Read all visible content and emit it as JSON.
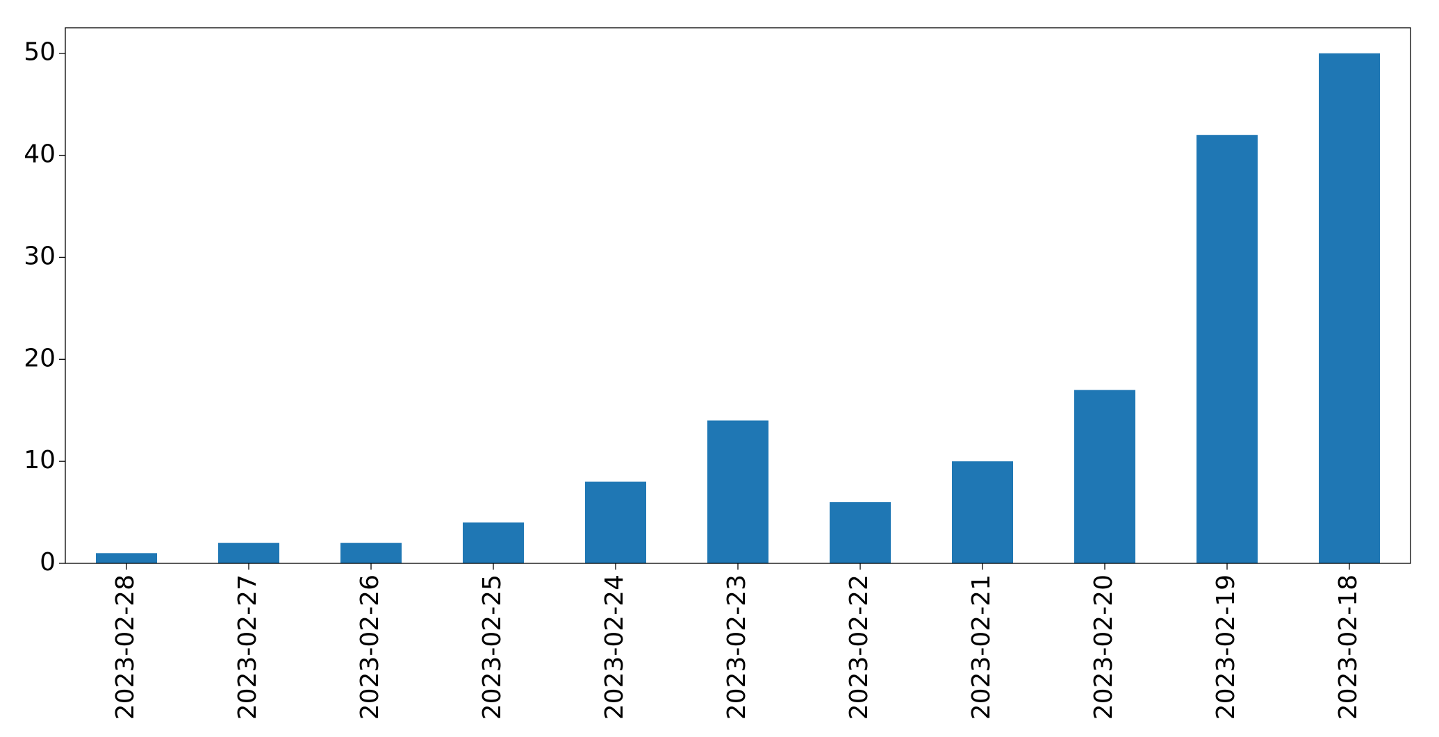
{
  "chart_data": {
    "type": "bar",
    "categories": [
      "2023-02-28",
      "2023-02-27",
      "2023-02-26",
      "2023-02-25",
      "2023-02-24",
      "2023-02-23",
      "2023-02-22",
      "2023-02-21",
      "2023-02-20",
      "2023-02-19",
      "2023-02-18"
    ],
    "values": [
      1,
      2,
      2,
      4,
      8,
      14,
      6,
      10,
      17,
      42,
      50
    ],
    "color": "#1f77b4",
    "ylim": [
      0,
      52.5
    ],
    "yticks": [
      0,
      10,
      20,
      30,
      40,
      50
    ],
    "grid": false
  }
}
